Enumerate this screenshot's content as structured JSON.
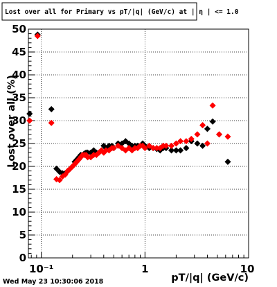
{
  "chart_data": {
    "type": "scatter",
    "title": "Lost over all for Primary vs pT/|q| (GeV/c) at | η | <= 1.0",
    "xlabel": "pT/|q| (GeV/c)",
    "ylabel": "Lost over all (%)",
    "xscale": "log",
    "xlim": [
      0.075,
      10
    ],
    "ylim": [
      0,
      50
    ],
    "grid": true,
    "x_tick_labels": [
      "10⁻¹",
      "1",
      "10"
    ],
    "y_tick_labels": [
      "0",
      "5",
      "10",
      "15",
      "20",
      "25",
      "30",
      "35",
      "40",
      "45",
      "50"
    ],
    "series": [
      {
        "color": "#000000",
        "marker": "diamond",
        "points": [
          [
            0.077,
            31.5
          ],
          [
            0.092,
            48.8
          ],
          [
            0.125,
            32.5
          ],
          [
            0.14,
            19.5
          ],
          [
            0.15,
            18.8
          ],
          [
            0.16,
            18.5
          ],
          [
            0.17,
            18.5
          ],
          [
            0.18,
            19.0
          ],
          [
            0.19,
            19.5
          ],
          [
            0.2,
            20.0
          ],
          [
            0.21,
            21.0
          ],
          [
            0.22,
            21.5
          ],
          [
            0.23,
            22.0
          ],
          [
            0.24,
            22.5
          ],
          [
            0.25,
            22.5
          ],
          [
            0.26,
            22.8
          ],
          [
            0.27,
            23.0
          ],
          [
            0.28,
            23.0
          ],
          [
            0.3,
            23.0
          ],
          [
            0.32,
            23.5
          ],
          [
            0.34,
            23.0
          ],
          [
            0.36,
            23.0
          ],
          [
            0.38,
            23.5
          ],
          [
            0.4,
            24.5
          ],
          [
            0.42,
            24.0
          ],
          [
            0.45,
            24.5
          ],
          [
            0.48,
            24.5
          ],
          [
            0.5,
            24.0
          ],
          [
            0.55,
            25.0
          ],
          [
            0.6,
            25.0
          ],
          [
            0.65,
            25.5
          ],
          [
            0.7,
            25.0
          ],
          [
            0.75,
            24.5
          ],
          [
            0.8,
            24.5
          ],
          [
            0.85,
            24.5
          ],
          [
            0.9,
            24.5
          ],
          [
            0.95,
            25.0
          ],
          [
            1.0,
            24.5
          ],
          [
            1.1,
            24.0
          ],
          [
            1.2,
            24.0
          ],
          [
            1.3,
            23.8
          ],
          [
            1.4,
            23.5
          ],
          [
            1.5,
            24.0
          ],
          [
            1.6,
            24.0
          ],
          [
            1.8,
            23.5
          ],
          [
            2.0,
            23.5
          ],
          [
            2.2,
            23.5
          ],
          [
            2.5,
            24.0
          ],
          [
            2.8,
            25.5
          ],
          [
            3.2,
            25.0
          ],
          [
            3.6,
            24.5
          ],
          [
            4.0,
            28.2
          ],
          [
            4.5,
            29.8
          ],
          [
            5.2,
            27.0
          ],
          [
            6.3,
            21.0
          ]
        ]
      },
      {
        "color": "#ff0000",
        "marker": "diamond",
        "points": [
          [
            0.077,
            30.0
          ],
          [
            0.092,
            48.5
          ],
          [
            0.125,
            29.5
          ],
          [
            0.14,
            17.2
          ],
          [
            0.15,
            17.0
          ],
          [
            0.16,
            17.8
          ],
          [
            0.17,
            18.2
          ],
          [
            0.18,
            19.0
          ],
          [
            0.19,
            19.5
          ],
          [
            0.2,
            20.0
          ],
          [
            0.21,
            20.5
          ],
          [
            0.22,
            21.0
          ],
          [
            0.23,
            21.5
          ],
          [
            0.24,
            22.0
          ],
          [
            0.25,
            22.5
          ],
          [
            0.26,
            22.5
          ],
          [
            0.27,
            22.5
          ],
          [
            0.28,
            22.0
          ],
          [
            0.3,
            22.0
          ],
          [
            0.32,
            22.5
          ],
          [
            0.34,
            22.5
          ],
          [
            0.36,
            23.0
          ],
          [
            0.38,
            23.5
          ],
          [
            0.4,
            23.0
          ],
          [
            0.42,
            23.5
          ],
          [
            0.45,
            23.5
          ],
          [
            0.48,
            24.0
          ],
          [
            0.5,
            24.0
          ],
          [
            0.55,
            24.5
          ],
          [
            0.6,
            24.0
          ],
          [
            0.65,
            23.5
          ],
          [
            0.7,
            24.0
          ],
          [
            0.75,
            23.5
          ],
          [
            0.8,
            24.0
          ],
          [
            0.85,
            24.0
          ],
          [
            0.9,
            24.5
          ],
          [
            0.95,
            24.5
          ],
          [
            1.0,
            24.0
          ],
          [
            1.1,
            24.5
          ],
          [
            1.2,
            24.0
          ],
          [
            1.3,
            24.0
          ],
          [
            1.4,
            24.0
          ],
          [
            1.5,
            24.5
          ],
          [
            1.6,
            24.5
          ],
          [
            1.8,
            24.5
          ],
          [
            2.0,
            25.0
          ],
          [
            2.2,
            25.5
          ],
          [
            2.5,
            25.5
          ],
          [
            2.8,
            26.0
          ],
          [
            3.2,
            27.0
          ],
          [
            3.6,
            29.0
          ],
          [
            4.0,
            25.0
          ],
          [
            4.5,
            33.3
          ],
          [
            5.2,
            27.0
          ],
          [
            6.3,
            26.5
          ]
        ]
      }
    ]
  },
  "timestamp": "Wed May 23 10:30:06 2018"
}
